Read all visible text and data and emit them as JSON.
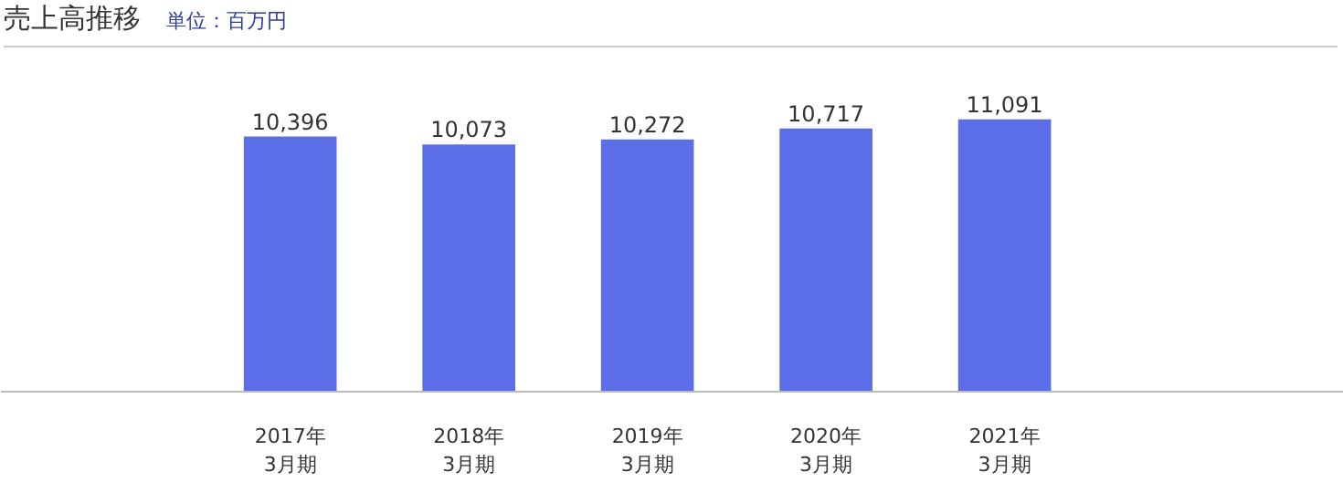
{
  "chart_data": {
    "type": "bar",
    "title": "売上高推移",
    "subtitle": "単位：百万円",
    "categories": [
      "2017年\n3月期",
      "2018年\n3月期",
      "2019年\n3月期",
      "2020年\n3月期",
      "2021年\n3月期"
    ],
    "values": [
      10396,
      10073,
      10272,
      10717,
      11091
    ],
    "color": "#5b6ee8",
    "value_labels": [
      "10,396",
      "10,073",
      "10,272",
      "10,717",
      "11,091"
    ]
  }
}
